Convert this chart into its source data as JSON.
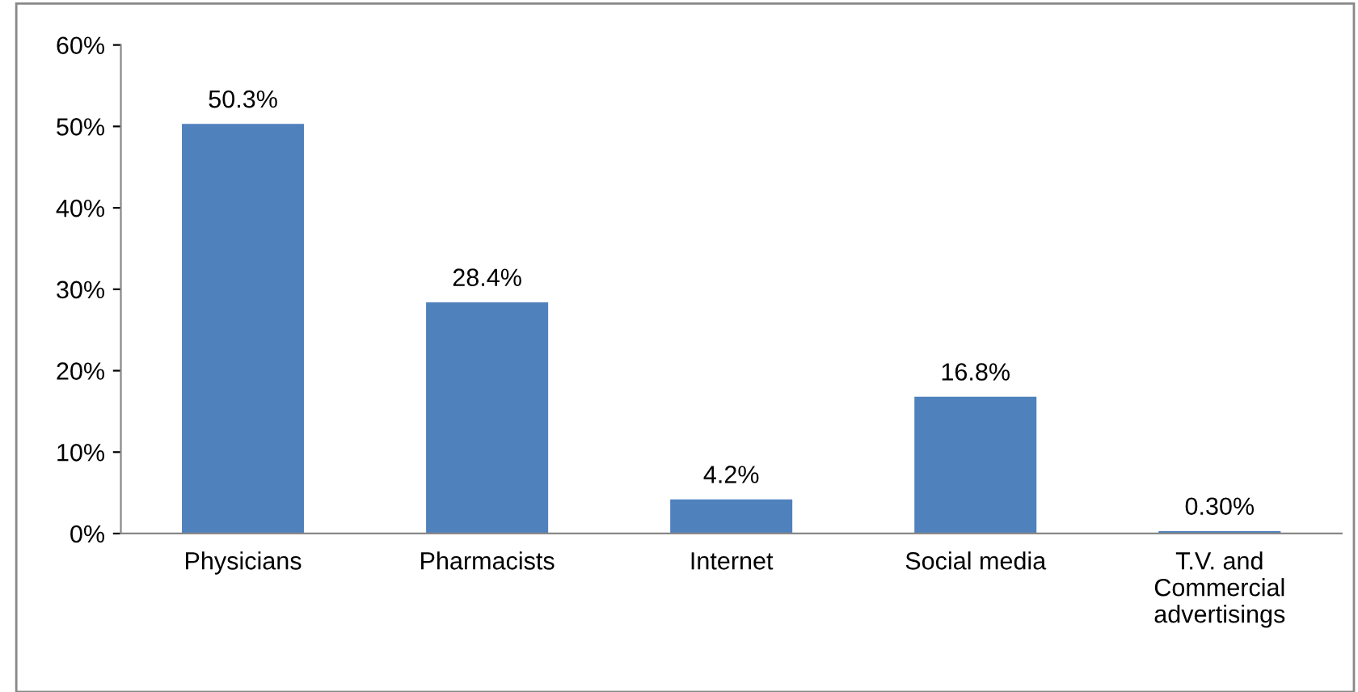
{
  "chart_data": {
    "type": "bar",
    "categories": [
      "Physicians",
      "Pharmacists",
      "Internet",
      "Social media",
      "T.V. and\nCommercial\nadvertisings"
    ],
    "values": [
      50.3,
      28.4,
      4.2,
      16.8,
      0.3
    ],
    "value_labels": [
      "50.3%",
      "28.4%",
      "4.2%",
      "16.8%",
      "0.30%"
    ],
    "color": "#4f81bd",
    "ylim": [
      0,
      60
    ],
    "yticks": [
      {
        "value": 0,
        "label": "0%"
      },
      {
        "value": 10,
        "label": "10%"
      },
      {
        "value": 20,
        "label": "20%"
      },
      {
        "value": 30,
        "label": "30%"
      },
      {
        "value": 40,
        "label": "40%"
      },
      {
        "value": 50,
        "label": "50%"
      },
      {
        "value": 60,
        "label": "60%"
      }
    ],
    "grid": false,
    "legend": false
  }
}
